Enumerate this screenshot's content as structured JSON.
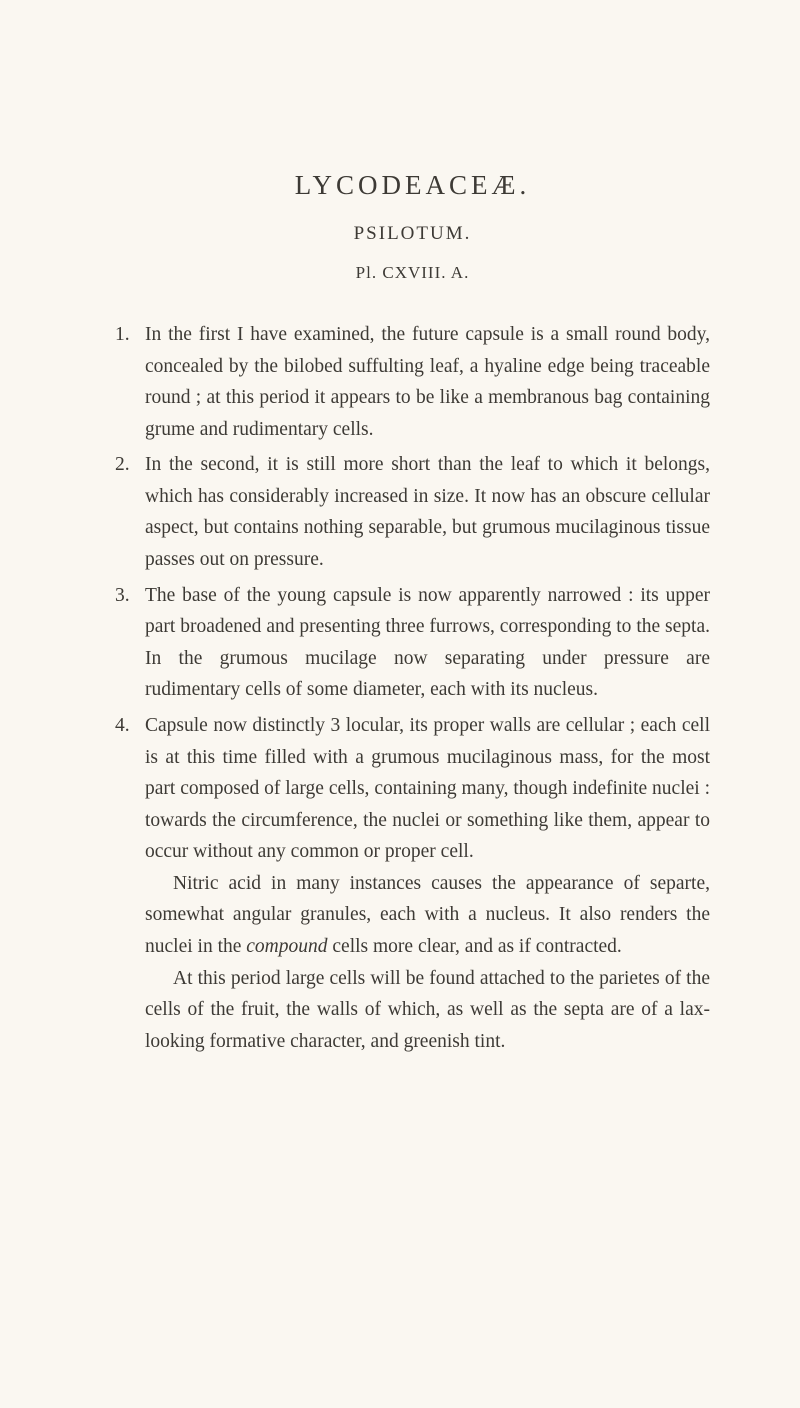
{
  "title": "LYCODEACEÆ.",
  "subtitle": "PSILOTUM.",
  "plate": "Pl. CXVIII. A.",
  "entries": [
    {
      "num": "1.",
      "text": "In the first I have examined, the future capsule is a small round body, concealed by the bilobed suffulting leaf, a hyaline edge being traceable round ; at this period it appears to be like a membranous bag containing grume and rudimentary cells."
    },
    {
      "num": "2.",
      "text": "In the second, it is still more short than the leaf to which it belongs, which has considerably increased in size. It now has an obscure cellular aspect, but contains nothing separable, but grumous mucilaginous tissue passes out on pressure."
    },
    {
      "num": "3.",
      "text": "The base of the young capsule is now apparently narrowed : its upper part broadened and presenting three furrows, corresponding to the septa. In the grumous mucilage now separating under pressure are rudimentary cells of some diameter, each with its nucleus."
    },
    {
      "num": "4.",
      "text_pre": "Capsule now distinctly 3 locular, its proper walls are cellular ; each cell is at this time filled with a grumous mucilaginous mass, for the most part composed of large cells, containing many, though indefinite nuclei : towards the circumference, the nuclei or something like them, appear to occur without any common or proper cell.",
      "para2_pre": "Nitric acid in many instances causes the appearance of separte, somewhat angular granules, each with a nucleus. It also renders the nuclei in the ",
      "para2_italic": "compound",
      "para2_post": " cells more clear, and as if contracted.",
      "para3": "At this period large cells will be found attached to the parietes of the cells of the fruit, the walls of which, as well as the septa are of a lax-looking formative character, and greenish tint."
    }
  ]
}
